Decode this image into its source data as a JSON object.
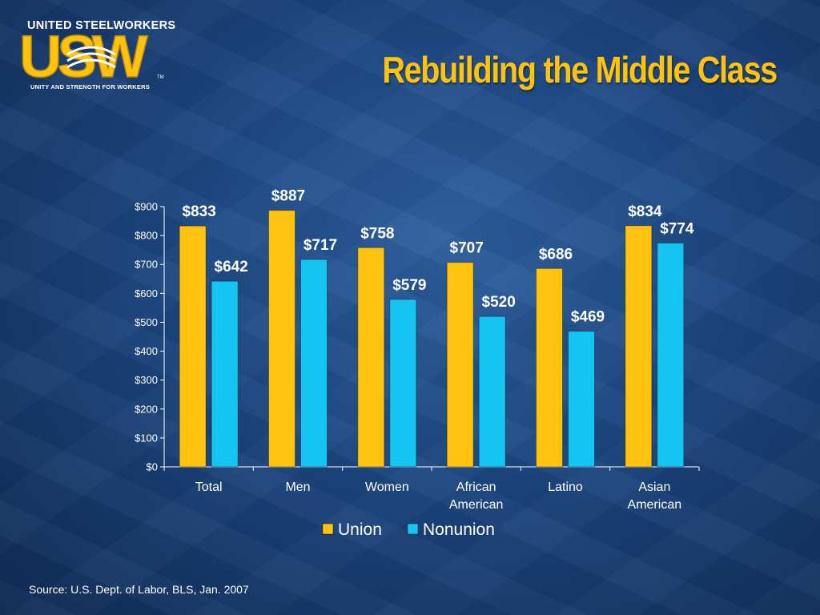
{
  "logo": {
    "top_text": "UNITED STEELWORKERS",
    "letters": "USW",
    "bottom_text": "UNITY AND STRENGTH FOR WORKERS",
    "trademark": "TM"
  },
  "title": "Rebuilding the Middle Class",
  "source": "Source: U.S. Dept. of Labor, BLS, Jan. 2007",
  "colors": {
    "union": "#ffc20e",
    "nonunion": "#16c4f2",
    "title": "#ffc20e"
  },
  "chart_data": {
    "type": "bar",
    "title": "",
    "xlabel": "",
    "ylabel": "",
    "categories": [
      [
        "Total"
      ],
      [
        "Men"
      ],
      [
        "Women"
      ],
      [
        "African",
        "American"
      ],
      [
        "Latino"
      ],
      [
        "Asian",
        "American"
      ]
    ],
    "series": [
      {
        "name": "Union",
        "values": [
          833,
          887,
          758,
          707,
          686,
          834
        ],
        "labels": [
          "$833",
          "$887",
          "$758",
          "$707",
          "$686",
          "$834"
        ]
      },
      {
        "name": "Nonunion",
        "values": [
          642,
          717,
          579,
          520,
          469,
          774
        ],
        "labels": [
          "$642",
          "$717",
          "$579",
          "$520",
          "$469",
          "$774"
        ]
      }
    ],
    "yticks": [
      0,
      100,
      200,
      300,
      400,
      500,
      600,
      700,
      800,
      900
    ],
    "ytick_labels": [
      "$0",
      "$100",
      "$200",
      "$300",
      "$400",
      "$500",
      "$600",
      "$700",
      "$800",
      "$900"
    ],
    "ylim": [
      0,
      900
    ],
    "grid": false,
    "legend_position": "bottom"
  }
}
